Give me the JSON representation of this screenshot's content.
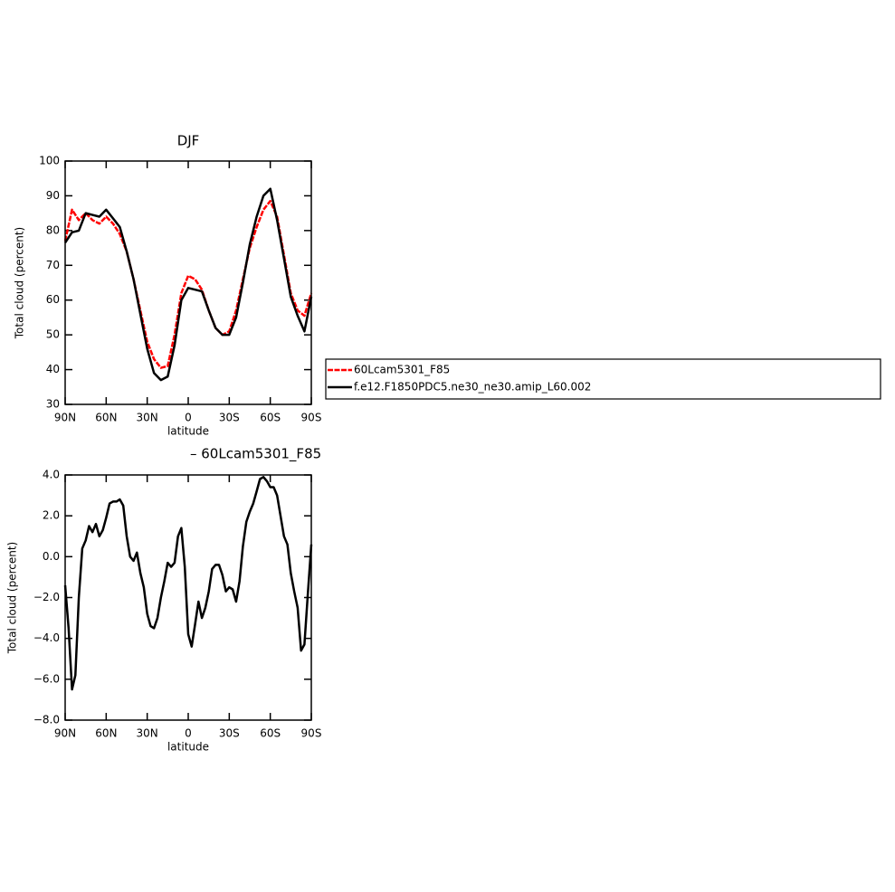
{
  "chart_data": [
    {
      "type": "line",
      "title": "DJF",
      "xlabel": "latitude",
      "ylabel": "Total cloud (percent)",
      "x": [
        90,
        85,
        80,
        75,
        70,
        65,
        60,
        55,
        50,
        45,
        40,
        35,
        30,
        25,
        20,
        15,
        10,
        5,
        0,
        -5,
        -10,
        -15,
        -20,
        -25,
        -30,
        -35,
        -40,
        -45,
        -50,
        -55,
        -60,
        -65,
        -70,
        -75,
        -80,
        -85,
        -90
      ],
      "series": [
        {
          "name": "60Lcam5301_F85",
          "color": "#ff0000",
          "values": [
            77,
            86,
            83,
            85,
            83,
            82,
            84,
            82,
            79,
            74,
            66,
            57,
            48,
            43,
            40.5,
            41,
            50,
            62,
            67,
            66,
            63,
            57,
            52,
            50,
            51,
            57,
            66,
            75,
            81,
            86,
            88.5,
            84,
            73,
            62,
            57,
            55.5,
            62
          ]
        },
        {
          "name": "f.e12.F1850PDC5.ne30_ne30.amip_L60.002",
          "color": "#000000",
          "values": [
            76.5,
            79.5,
            80,
            85,
            84.5,
            84,
            86,
            83.5,
            81,
            74,
            66,
            56,
            46,
            39,
            37,
            38,
            47,
            60,
            63.5,
            63,
            62.5,
            57,
            52,
            50,
            50,
            55,
            65,
            76,
            84,
            90,
            92,
            83,
            72,
            61,
            55.5,
            51,
            61
          ]
        }
      ],
      "xlim": [
        90,
        -90
      ],
      "xticks": [
        {
          "value": 90,
          "label": "90N"
        },
        {
          "value": 60,
          "label": "60N"
        },
        {
          "value": 30,
          "label": "30N"
        },
        0,
        {
          "value": -30,
          "label": "30S"
        },
        {
          "value": -60,
          "label": "60S"
        },
        {
          "value": -90,
          "label": "90S"
        }
      ],
      "ylim": [
        30,
        100
      ],
      "yticks": [
        30,
        40,
        50,
        60,
        70,
        80,
        90,
        100
      ],
      "legend": "right"
    },
    {
      "type": "line",
      "title": "– 60Lcam5301_F85",
      "xlabel": "latitude",
      "ylabel": "Total cloud (percent)",
      "x": [
        90,
        87.5,
        85,
        82.5,
        80,
        77.5,
        75,
        72.5,
        70,
        67.5,
        65,
        62.5,
        60,
        57.5,
        55,
        52.5,
        50,
        47.5,
        45,
        42.5,
        40,
        37.5,
        35,
        32.5,
        30,
        27.5,
        25,
        22.5,
        20,
        17.5,
        15,
        12.5,
        10,
        7.5,
        5,
        2.5,
        0,
        -2.5,
        -5,
        -7.5,
        -10,
        -12.5,
        -15,
        -17.5,
        -20,
        -22.5,
        -25,
        -27.5,
        -30,
        -32.5,
        -35,
        -37.5,
        -40,
        -42.5,
        -45,
        -47.5,
        -50,
        -52.5,
        -55,
        -57.5,
        -60,
        -62.5,
        -65,
        -67.5,
        -70,
        -72.5,
        -75,
        -77.5,
        -80,
        -82.5,
        -85,
        -87.5,
        -90
      ],
      "values": [
        -1.4,
        -3.5,
        -6.5,
        -5.8,
        -2,
        0.4,
        0.8,
        1.5,
        1.2,
        1.6,
        1.0,
        1.3,
        1.9,
        2.6,
        2.7,
        2.7,
        2.8,
        2.5,
        1.0,
        0.0,
        -0.2,
        0.2,
        -0.8,
        -1.5,
        -2.8,
        -3.4,
        -3.5,
        -3.0,
        -2.0,
        -1.2,
        -0.3,
        -0.5,
        -0.3,
        1.0,
        1.4,
        -0.5,
        -3.8,
        -4.4,
        -3.3,
        -2.2,
        -3.0,
        -2.5,
        -1.7,
        -0.6,
        -0.4,
        -0.4,
        -0.9,
        -1.7,
        -1.5,
        -1.6,
        -2.2,
        -1.2,
        0.5,
        1.7,
        2.2,
        2.6,
        3.2,
        3.8,
        3.9,
        3.7,
        3.4,
        3.4,
        3.0,
        2.0,
        1.0,
        0.6,
        -0.8,
        -1.7,
        -2.5,
        -4.6,
        -4.3,
        -1.8,
        0.6
      ],
      "color": "#000000",
      "xlim": [
        90,
        -90
      ],
      "xticks": [
        {
          "value": 90,
          "label": "90N"
        },
        {
          "value": 60,
          "label": "60N"
        },
        {
          "value": 30,
          "label": "30N"
        },
        0,
        {
          "value": -30,
          "label": "30S"
        },
        {
          "value": -60,
          "label": "60S"
        },
        {
          "value": -90,
          "label": "90S"
        }
      ],
      "ylim": [
        -8,
        4
      ],
      "yticks": [
        {
          "value": -8,
          "label": "−8.0"
        },
        {
          "value": -6,
          "label": "−6.0"
        },
        {
          "value": -4,
          "label": "−4.0"
        },
        {
          "value": -2,
          "label": "−2.0"
        },
        {
          "value": 0,
          "label": "0.0"
        },
        {
          "value": 2,
          "label": "2.0"
        },
        {
          "value": 4,
          "label": "4.0"
        }
      ]
    }
  ]
}
